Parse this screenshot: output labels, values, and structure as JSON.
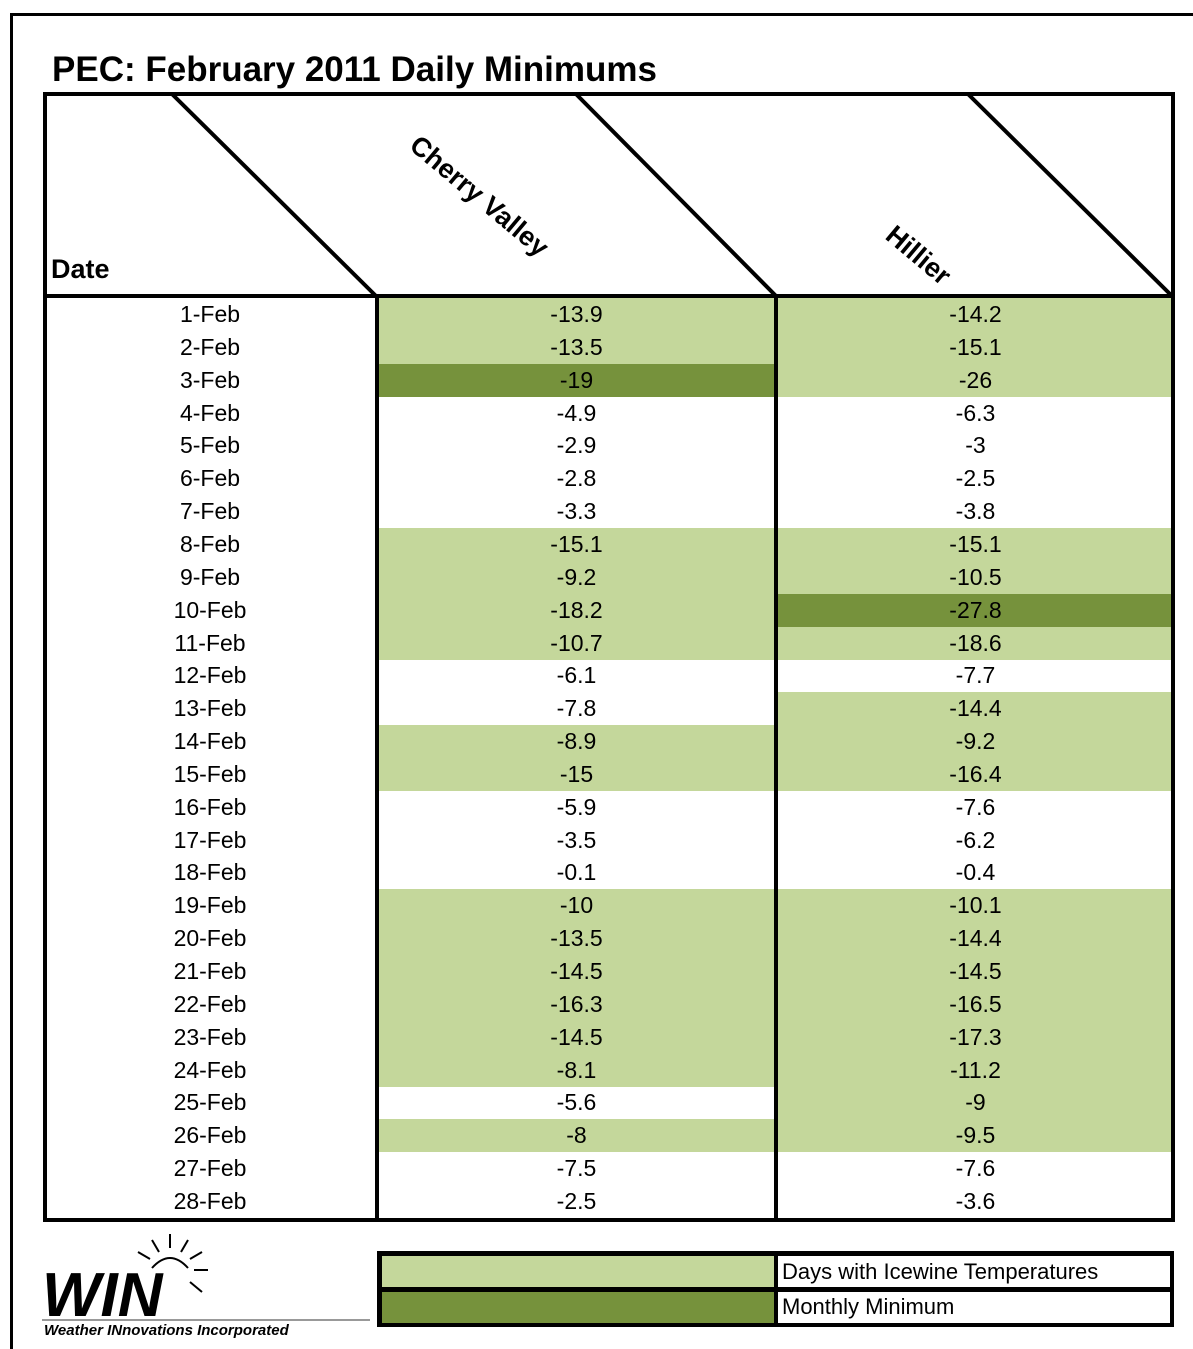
{
  "title": "PEC: February 2011 Daily Minimums",
  "chart_data": {
    "type": "table",
    "title": "PEC: February 2011 Daily Minimums",
    "columns": [
      "Date",
      "Cherry Valley",
      "Hillier"
    ],
    "rows": [
      {
        "date": "1-Feb",
        "cherry_valley": "-13.9",
        "hillier": "-14.2",
        "cv_status": "icewine",
        "hl_status": "icewine"
      },
      {
        "date": "2-Feb",
        "cherry_valley": "-13.5",
        "hillier": "-15.1",
        "cv_status": "icewine",
        "hl_status": "icewine"
      },
      {
        "date": "3-Feb",
        "cherry_valley": "-19",
        "hillier": "-26",
        "cv_status": "minimum",
        "hl_status": "icewine"
      },
      {
        "date": "4-Feb",
        "cherry_valley": "-4.9",
        "hillier": "-6.3",
        "cv_status": "none",
        "hl_status": "none"
      },
      {
        "date": "5-Feb",
        "cherry_valley": "-2.9",
        "hillier": "-3",
        "cv_status": "none",
        "hl_status": "none"
      },
      {
        "date": "6-Feb",
        "cherry_valley": "-2.8",
        "hillier": "-2.5",
        "cv_status": "none",
        "hl_status": "none"
      },
      {
        "date": "7-Feb",
        "cherry_valley": "-3.3",
        "hillier": "-3.8",
        "cv_status": "none",
        "hl_status": "none"
      },
      {
        "date": "8-Feb",
        "cherry_valley": "-15.1",
        "hillier": "-15.1",
        "cv_status": "icewine",
        "hl_status": "icewine"
      },
      {
        "date": "9-Feb",
        "cherry_valley": "-9.2",
        "hillier": "-10.5",
        "cv_status": "icewine",
        "hl_status": "icewine"
      },
      {
        "date": "10-Feb",
        "cherry_valley": "-18.2",
        "hillier": "-27.8",
        "cv_status": "icewine",
        "hl_status": "minimum"
      },
      {
        "date": "11-Feb",
        "cherry_valley": "-10.7",
        "hillier": "-18.6",
        "cv_status": "icewine",
        "hl_status": "icewine"
      },
      {
        "date": "12-Feb",
        "cherry_valley": "-6.1",
        "hillier": "-7.7",
        "cv_status": "none",
        "hl_status": "none"
      },
      {
        "date": "13-Feb",
        "cherry_valley": "-7.8",
        "hillier": "-14.4",
        "cv_status": "none",
        "hl_status": "icewine"
      },
      {
        "date": "14-Feb",
        "cherry_valley": "-8.9",
        "hillier": "-9.2",
        "cv_status": "icewine",
        "hl_status": "icewine"
      },
      {
        "date": "15-Feb",
        "cherry_valley": "-15",
        "hillier": "-16.4",
        "cv_status": "icewine",
        "hl_status": "icewine"
      },
      {
        "date": "16-Feb",
        "cherry_valley": "-5.9",
        "hillier": "-7.6",
        "cv_status": "none",
        "hl_status": "none"
      },
      {
        "date": "17-Feb",
        "cherry_valley": "-3.5",
        "hillier": "-6.2",
        "cv_status": "none",
        "hl_status": "none"
      },
      {
        "date": "18-Feb",
        "cherry_valley": "-0.1",
        "hillier": "-0.4",
        "cv_status": "none",
        "hl_status": "none"
      },
      {
        "date": "19-Feb",
        "cherry_valley": "-10",
        "hillier": "-10.1",
        "cv_status": "icewine",
        "hl_status": "icewine"
      },
      {
        "date": "20-Feb",
        "cherry_valley": "-13.5",
        "hillier": "-14.4",
        "cv_status": "icewine",
        "hl_status": "icewine"
      },
      {
        "date": "21-Feb",
        "cherry_valley": "-14.5",
        "hillier": "-14.5",
        "cv_status": "icewine",
        "hl_status": "icewine"
      },
      {
        "date": "22-Feb",
        "cherry_valley": "-16.3",
        "hillier": "-16.5",
        "cv_status": "icewine",
        "hl_status": "icewine"
      },
      {
        "date": "23-Feb",
        "cherry_valley": "-14.5",
        "hillier": "-17.3",
        "cv_status": "icewine",
        "hl_status": "icewine"
      },
      {
        "date": "24-Feb",
        "cherry_valley": "-8.1",
        "hillier": "-11.2",
        "cv_status": "icewine",
        "hl_status": "icewine"
      },
      {
        "date": "25-Feb",
        "cherry_valley": "-5.6",
        "hillier": "-9",
        "cv_status": "none",
        "hl_status": "icewine"
      },
      {
        "date": "26-Feb",
        "cherry_valley": "-8",
        "hillier": "-9.5",
        "cv_status": "icewine",
        "hl_status": "icewine"
      },
      {
        "date": "27-Feb",
        "cherry_valley": "-7.5",
        "hillier": "-7.6",
        "cv_status": "none",
        "hl_status": "none"
      },
      {
        "date": "28-Feb",
        "cherry_valley": "-2.5",
        "hillier": "-3.6",
        "cv_status": "none",
        "hl_status": "none"
      }
    ]
  },
  "legend": {
    "icewine_label": "Days with Icewine Temperatures",
    "minimum_label": "Monthly Minimum"
  },
  "colors": {
    "icewine": "#c4d79b",
    "minimum": "#76923c",
    "border": "#000000"
  },
  "logo": {
    "name": "WIN",
    "subtitle": "Weather INnovations Incorporated"
  }
}
